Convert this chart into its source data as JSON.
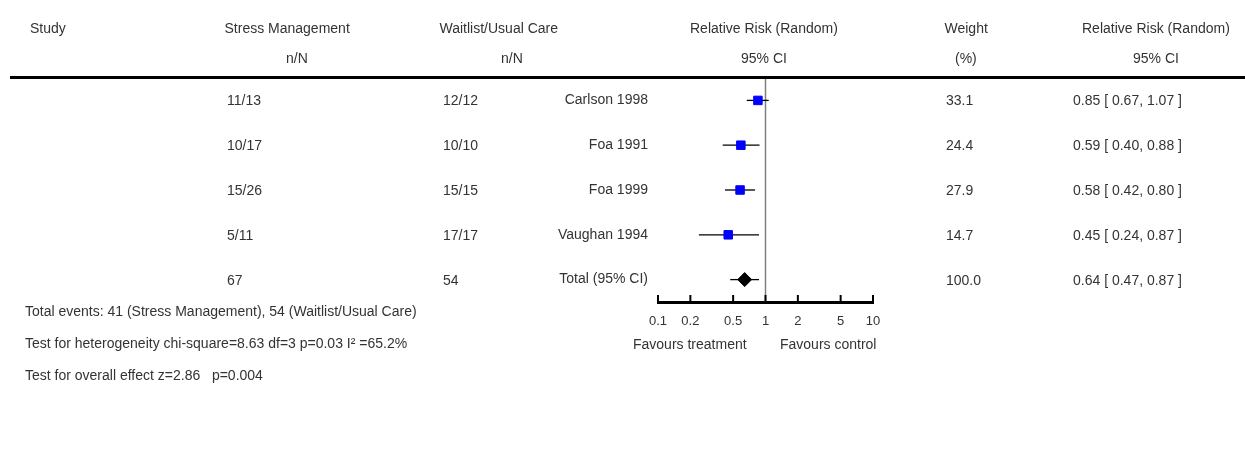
{
  "chart_data": {
    "type": "scatter",
    "title": "Relative Risk (Random)",
    "subtitle": "95% CI",
    "orientation": "horizontal",
    "categories": [
      "Carlson 1998",
      "Foa 1991",
      "Foa 1999",
      "Vaughan 1994",
      "Total (95% CI)"
    ],
    "log": "x",
    "xlim": [
      0.1,
      10
    ],
    "xticks": [
      0.1,
      0.2,
      0.5,
      1,
      2,
      5,
      10
    ],
    "series": [
      {
        "marker": "square",
        "color": "#0000ff",
        "values": [
          0.85,
          0.59,
          0.58,
          0.45,
          null
        ],
        "errors": [
          [
            0.67,
            1.07
          ],
          [
            0.4,
            0.88
          ],
          [
            0.42,
            0.8
          ],
          [
            0.24,
            0.87
          ],
          null
        ]
      },
      {
        "marker": "diamond",
        "color": "#000000",
        "values": [
          null,
          null,
          null,
          null,
          0.64
        ],
        "errors": [
          null,
          null,
          null,
          null,
          [
            0.47,
            0.87
          ]
        ]
      }
    ],
    "ref_lines": [
      {
        "axis": "x",
        "value": 1,
        "color": "#808080"
      }
    ],
    "annotations": [
      "Study",
      "Stress Management",
      "n/N",
      "Waitlist/Usual Care",
      "n/N",
      "Weight",
      "(%)",
      "Relative Risk (Random)",
      "95% CI",
      "11/13",
      "10/17",
      "15/26",
      "5/11",
      "67",
      "12/12",
      "10/10",
      "15/15",
      "17/17",
      "54",
      "33.1",
      "24.4",
      "27.9",
      "14.7",
      "100.0",
      "0.85 [ 0.67, 1.07 ]",
      "0.59 [ 0.40, 0.88 ]",
      "0.58 [ 0.42, 0.80 ]",
      "0.45 [ 0.24, 0.87 ]",
      "0.64 [ 0.47, 0.87 ]",
      "Total events: 41 (Stress Management), 54 (Waitlist/Usual Care)",
      "Test for heterogeneity chi-square=8.63 df=3 p=0.03 I² =65.2%",
      "Test for overall effect z=2.86   p=0.004",
      "Favours treatment",
      "Favours control"
    ],
    "grid": false,
    "legend": false
  }
}
